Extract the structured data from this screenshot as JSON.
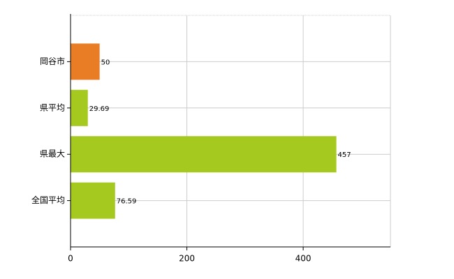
{
  "chart_data": {
    "type": "hbar",
    "categories": [
      "岡谷市",
      "県平均",
      "県最大",
      "全国平均"
    ],
    "values": [
      50,
      29.69,
      457,
      76.59
    ],
    "colors": [
      "#e87d26",
      "#a5c91f",
      "#a5c91f",
      "#a5c91f"
    ],
    "xlim": [
      0,
      550
    ],
    "xticks": [
      0,
      200,
      400
    ],
    "grid": true
  }
}
